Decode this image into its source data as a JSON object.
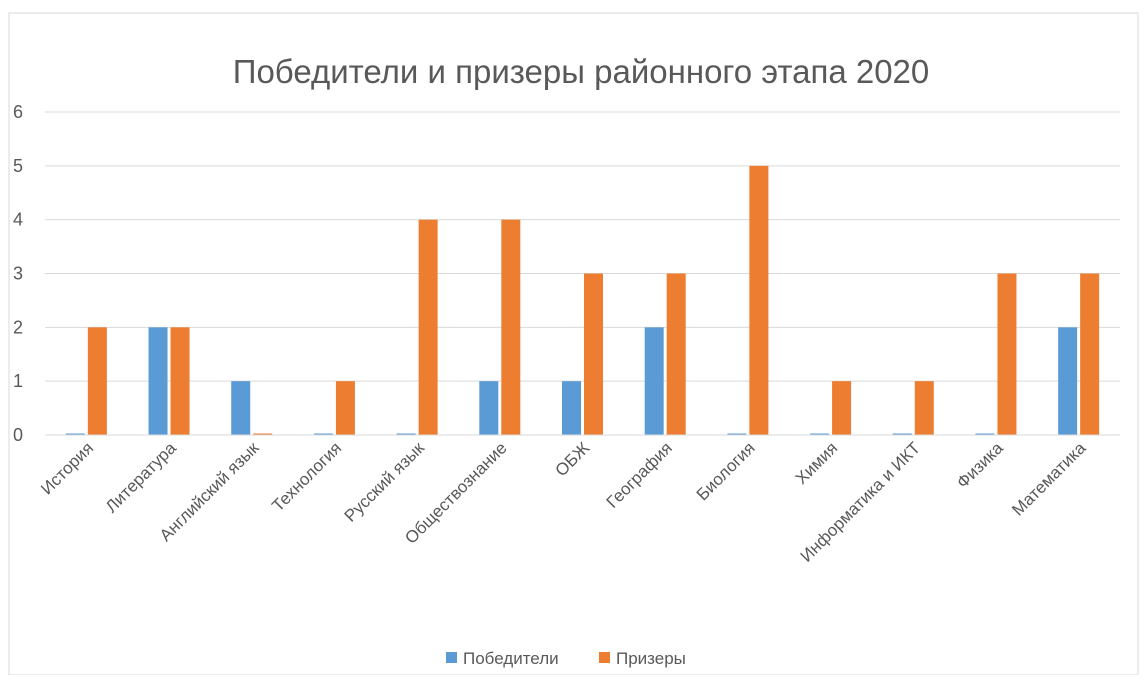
{
  "chart_data": {
    "type": "bar",
    "title": "Победители и призеры районного этапа 2020",
    "xlabel": "",
    "ylabel": "",
    "ylim": [
      0,
      6
    ],
    "yticks": [
      "0",
      "1",
      "2",
      "3",
      "4",
      "5",
      "6"
    ],
    "grid": true,
    "legend": "bottom",
    "categories": [
      "История",
      "Литература",
      "Английский язык",
      "Технология",
      "Русский язык",
      "Обществознание",
      "ОБЖ",
      "География",
      "Биология",
      "Химия",
      "Информатика и ИКТ",
      "Физика",
      "Математика"
    ],
    "series": [
      {
        "name": "Победители",
        "color": "#5B9BD5",
        "values": [
          0,
          2,
          1,
          0,
          0,
          1,
          1,
          2,
          0,
          0,
          0,
          0,
          2
        ]
      },
      {
        "name": "Призеры",
        "color": "#ED7D31",
        "values": [
          2,
          2,
          0,
          1,
          4,
          4,
          3,
          3,
          5,
          1,
          1,
          3,
          3
        ]
      }
    ]
  }
}
